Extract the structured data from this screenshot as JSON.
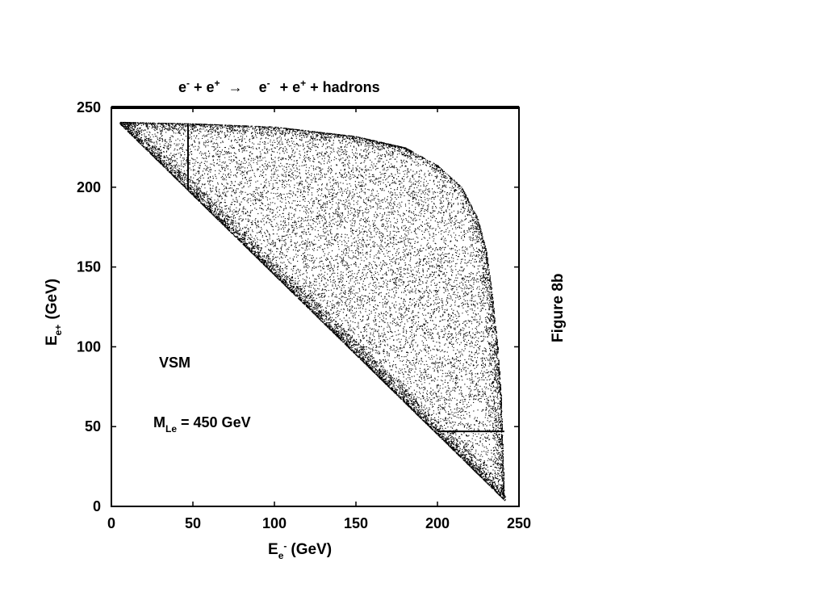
{
  "chart_data": {
    "type": "scatter",
    "title": {
      "e1": "e",
      "e1_sup": "-",
      "plus1": "+",
      "e2": "e",
      "e2_sup": "+",
      "arrow": "→",
      "e3": "e",
      "e3_sup": "-",
      "plus2": "+",
      "e4": "e",
      "e4_sup": "+",
      "rest": "+ hadrons"
    },
    "xlabel": {
      "main": "E",
      "sub": "e",
      "sup": "-",
      "unit": "(GeV)"
    },
    "ylabel": {
      "main": "E",
      "sub": "e+",
      "unit": "(GeV)"
    },
    "xlim": [
      0,
      250
    ],
    "ylim": [
      0,
      250
    ],
    "xticks": [
      0,
      50,
      100,
      150,
      200,
      250
    ],
    "yticks": [
      0,
      50,
      100,
      150,
      200,
      250
    ],
    "annotations": {
      "model": "VSM",
      "mass_main": "M",
      "mass_sub": "Le",
      "mass_value": "= 450 GeV"
    },
    "figure_label": "Figure 8b",
    "region": {
      "lower_boundary": "x + y = 245",
      "upper_boundary_points": [
        [
          5,
          241
        ],
        [
          50,
          240
        ],
        [
          100,
          238
        ],
        [
          150,
          232
        ],
        [
          180,
          225
        ],
        [
          200,
          214
        ],
        [
          215,
          200
        ],
        [
          225,
          180
        ],
        [
          230,
          160
        ],
        [
          234,
          130
        ],
        [
          237,
          100
        ],
        [
          239,
          70
        ],
        [
          240,
          40
        ],
        [
          241,
          7
        ]
      ]
    },
    "lines": [
      {
        "x": [
          47,
          47
        ],
        "y": [
          198,
          239
        ]
      },
      {
        "x": [
          200,
          241
        ],
        "y": [
          47,
          47
        ]
      }
    ],
    "grid": false
  }
}
